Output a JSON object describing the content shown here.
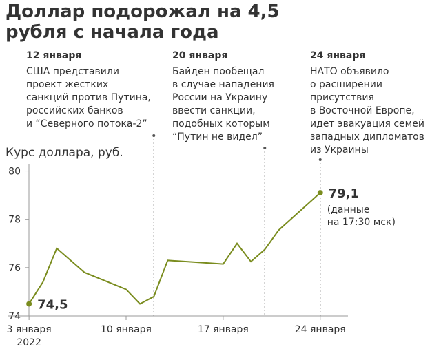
{
  "chart_data": {
    "type": "line",
    "title": "Доллар подорожал на 4,5 рубля с начала года",
    "y_label": "Курс доллара, руб.",
    "x": [
      "2022-01-03",
      "2022-01-04",
      "2022-01-05",
      "2022-01-06",
      "2022-01-07",
      "2022-01-10",
      "2022-01-11",
      "2022-01-12",
      "2022-01-13",
      "2022-01-17",
      "2022-01-18",
      "2022-01-19",
      "2022-01-20",
      "2022-01-21",
      "2022-01-24"
    ],
    "series": [
      {
        "name": "Курс доллара",
        "color": "#7a8c1e",
        "values": [
          74.5,
          75.4,
          76.8,
          76.3,
          75.8,
          75.1,
          74.5,
          74.8,
          76.3,
          76.15,
          77.0,
          76.25,
          76.75,
          77.55,
          79.1
        ],
        "value_labels": [
          "74,5",
          null,
          null,
          null,
          null,
          null,
          null,
          null,
          null,
          null,
          null,
          null,
          null,
          null,
          "79,1"
        ]
      }
    ],
    "value_note": [
      "(данные",
      "на 17:30 мск)"
    ],
    "xlim": [
      "2022-01-02",
      "2022-01-26"
    ],
    "xticks": [
      {
        "value": "2022-01-03",
        "label": [
          "3 января",
          "2022"
        ]
      },
      {
        "value": "2022-01-10",
        "label": [
          "10 января"
        ]
      },
      {
        "value": "2022-01-17",
        "label": [
          "17 января"
        ]
      },
      {
        "value": "2022-01-24",
        "label": [
          "24 января"
        ]
      }
    ],
    "ylim": [
      74,
      80.3
    ],
    "yticks": [
      74,
      76,
      78,
      80
    ],
    "annotations": [
      {
        "x": "2022-01-12",
        "title": "12 января",
        "lines": [
          "США представили",
          "проект жестких",
          "санкций против Путина,",
          "российских банков",
          "и “Северного потока-2”"
        ]
      },
      {
        "x": "2022-01-20",
        "title": "20 января",
        "lines": [
          "Байден пообещал",
          "в случае нападения",
          "России на Украину",
          "ввести санкции,",
          "подобных которым",
          "“Путин не видел”"
        ]
      },
      {
        "x": "2022-01-24",
        "title": "24 января",
        "lines": [
          "НАТО объявило",
          "о расширении",
          "присутствия",
          "в Восточной Европе,",
          "идет эвакуация семей",
          "западных дипломатов",
          "из Украины"
        ]
      }
    ]
  }
}
